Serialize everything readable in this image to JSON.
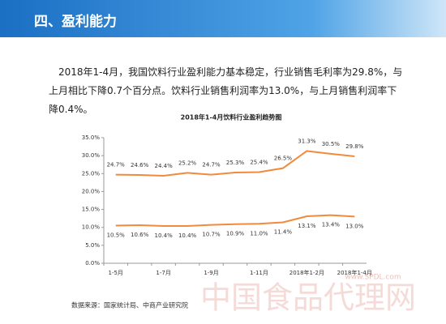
{
  "header": {
    "title": "四、盈利能力"
  },
  "paragraph": "2018年1-4月，我国饮料行业盈利能力基本稳定，行业销售毛利率为29.8%，与上月相比下降0.7个百分点。饮料行业销售利润率为13.0%，与上月销售利润率下降0.4%。",
  "chart_data": {
    "type": "line",
    "title": "2018年1-4月饮料行业盈利趋势图",
    "categories": [
      "1-5月",
      null,
      "1-7月",
      null,
      "1-9月",
      null,
      "1-11月",
      null,
      "2018年1-2月",
      null,
      "2018年1-4月"
    ],
    "series": [
      {
        "color": "#f08a3c",
        "values": [
          24.7,
          24.6,
          24.4,
          25.2,
          24.7,
          25.3,
          25.4,
          26.5,
          31.3,
          30.5,
          29.8
        ],
        "value_labels": [
          "24.7%",
          "24.6%",
          "24.4%",
          "25.2%",
          "24.7%",
          "25.3%",
          "25.4%",
          "26.5%",
          "31.3%",
          "30.5%",
          "29.8%"
        ]
      },
      {
        "color": "#f08a3c",
        "values": [
          10.5,
          10.6,
          10.4,
          10.4,
          10.7,
          10.9,
          11.0,
          11.4,
          13.1,
          13.4,
          13.0
        ],
        "value_labels": [
          "10.5%",
          "10.6%",
          "10.4%",
          "10.4%",
          "10.7%",
          "10.9%",
          "11.0%",
          "11.4%",
          "13.1%",
          "13.4%",
          "13.0%"
        ]
      }
    ],
    "ylim": [
      0,
      35
    ],
    "yticks": [
      {
        "value": 0,
        "label": "0.0%"
      },
      {
        "value": 5,
        "label": "5.0%"
      },
      {
        "value": 10,
        "label": "10.0%"
      },
      {
        "value": 15,
        "label": "15.0%"
      },
      {
        "value": 20,
        "label": "20.0%"
      },
      {
        "value": 25,
        "label": "25.0%"
      },
      {
        "value": 30,
        "label": "30.0%"
      },
      {
        "value": 35,
        "label": "35.0%"
      }
    ],
    "grid": false
  },
  "source": "数据来源：国家统计局、中商产业研究院",
  "watermark": {
    "text": "中国食品代理网",
    "url": "www.SPDL.com"
  }
}
